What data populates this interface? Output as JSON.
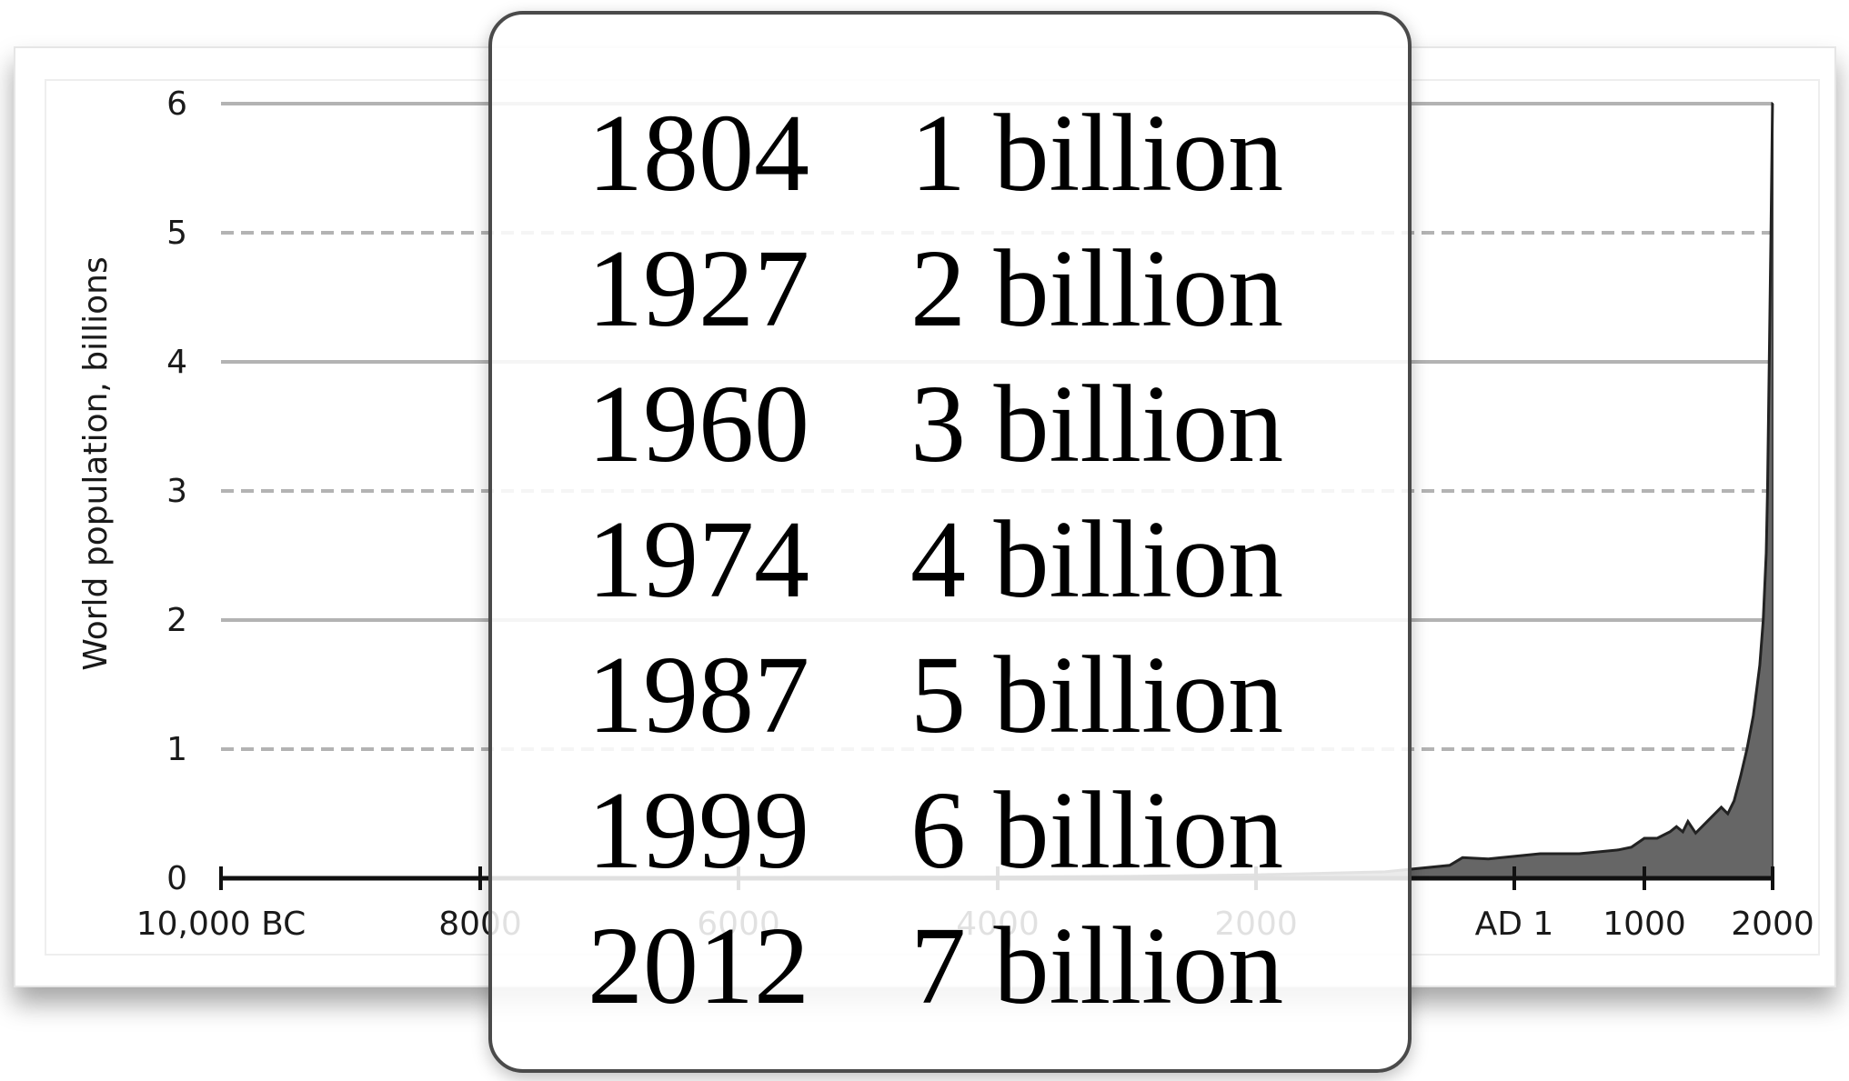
{
  "chart_data": {
    "type": "area",
    "title": "",
    "xlabel": "",
    "ylabel": "World population, billions",
    "ylim": [
      0,
      6
    ],
    "xlim": [
      -10000,
      2000
    ],
    "x_tick_labels": [
      {
        "x": -10000,
        "label": "10,000 BC"
      },
      {
        "x": -8000,
        "label": "8000"
      },
      {
        "x": -6000,
        "label": "6000"
      },
      {
        "x": -4000,
        "label": "4000"
      },
      {
        "x": -2000,
        "label": "2000"
      },
      {
        "x": 1,
        "label": "AD 1"
      },
      {
        "x": 1000,
        "label": "1000"
      },
      {
        "x": 2000,
        "label": "2000"
      }
    ],
    "y_ticks": [
      0,
      1,
      2,
      3,
      4,
      5,
      6
    ],
    "grid": {
      "solid": [
        0,
        2,
        4,
        6
      ],
      "dashed": [
        1,
        3,
        5
      ]
    },
    "series": [
      {
        "color": "#666666",
        "x": [
          -10000,
          -8000,
          -6000,
          -4000,
          -3000,
          -2000,
          -1000,
          -500,
          -400,
          -200,
          1,
          200,
          400,
          500,
          600,
          800,
          900,
          1000,
          1100,
          1200,
          1250,
          1300,
          1340,
          1400,
          1500,
          1600,
          1650,
          1700,
          1750,
          1800,
          1850,
          1900,
          1927,
          1950,
          1960,
          1974,
          1987,
          1999,
          2000,
          2012
        ],
        "y": [
          0.004,
          0.005,
          0.007,
          0.01,
          0.015,
          0.027,
          0.05,
          0.1,
          0.16,
          0.15,
          0.17,
          0.19,
          0.19,
          0.19,
          0.2,
          0.22,
          0.24,
          0.31,
          0.31,
          0.36,
          0.4,
          0.36,
          0.44,
          0.35,
          0.45,
          0.55,
          0.5,
          0.6,
          0.79,
          1.0,
          1.26,
          1.65,
          2.0,
          2.52,
          3.0,
          4.0,
          5.0,
          6.0,
          6.1,
          7.0
        ]
      }
    ]
  },
  "milestones": [
    {
      "year": "1804",
      "population": "1 billion"
    },
    {
      "year": "1927",
      "population": "2 billion"
    },
    {
      "year": "1960",
      "population": "3 billion"
    },
    {
      "year": "1974",
      "population": "4 billion"
    },
    {
      "year": "1987",
      "population": "5 billion"
    },
    {
      "year": "1999",
      "population": "6 billion"
    },
    {
      "year": "2012",
      "population": "7 billion"
    }
  ]
}
